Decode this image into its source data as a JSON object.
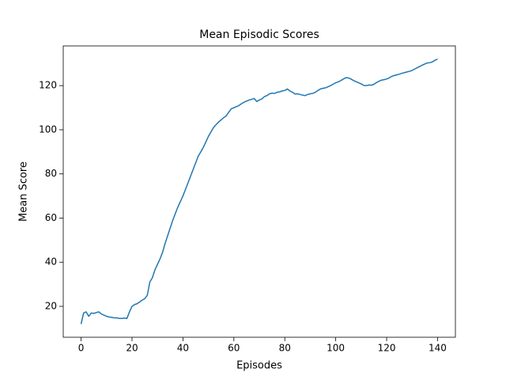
{
  "chart_data": {
    "type": "line",
    "title": "Mean Episodic Scores",
    "x_label": "Episodes",
    "y_label": "Mean Score",
    "x": [
      0,
      1,
      2,
      3,
      4,
      5,
      6,
      7,
      8,
      9,
      10,
      11,
      12,
      13,
      14,
      15,
      16,
      17,
      18,
      19,
      20,
      21,
      22,
      23,
      24,
      25,
      26,
      27,
      28,
      29,
      30,
      31,
      32,
      33,
      34,
      35,
      36,
      37,
      38,
      39,
      40,
      41,
      42,
      43,
      44,
      45,
      46,
      47,
      48,
      49,
      50,
      51,
      52,
      53,
      54,
      55,
      56,
      57,
      58,
      59,
      60,
      61,
      62,
      63,
      64,
      65,
      66,
      67,
      68,
      69,
      70,
      71,
      72,
      73,
      74,
      75,
      76,
      77,
      78,
      79,
      80,
      81,
      82,
      83,
      84,
      85,
      86,
      87,
      88,
      89,
      90,
      91,
      92,
      93,
      94,
      95,
      96,
      97,
      98,
      99,
      100,
      101,
      102,
      103,
      104,
      105,
      106,
      107,
      108,
      109,
      110,
      111,
      112,
      113,
      114,
      115,
      116,
      117,
      118,
      119,
      120,
      121,
      122,
      123,
      124,
      125,
      126,
      127,
      128,
      129,
      130,
      131,
      132,
      133,
      134,
      135,
      136,
      137,
      138,
      139,
      140
    ],
    "series": [
      {
        "name": "Mean Score",
        "color": "#1f77b4",
        "values": [
          12,
          17,
          17.5,
          15.5,
          17,
          16.8,
          17.2,
          17.5,
          16.5,
          16,
          15.5,
          15.2,
          15,
          14.8,
          14.8,
          14.5,
          14.5,
          14.7,
          14.5,
          17.5,
          20,
          20.8,
          21.2,
          22,
          22.8,
          23.5,
          25,
          31,
          33,
          36.5,
          39,
          41.5,
          44.5,
          48.5,
          52,
          55.5,
          59,
          62,
          65,
          67.5,
          70,
          73,
          76,
          79,
          82,
          85,
          88,
          90,
          92,
          94.5,
          97,
          99,
          101,
          102.3,
          103.5,
          104.5,
          105.5,
          106.3,
          108,
          109.5,
          110,
          110.5,
          111,
          111.8,
          112.5,
          113,
          113.5,
          113.8,
          114.2,
          112.8,
          113.5,
          114,
          115,
          115.5,
          116.3,
          116.6,
          116.5,
          117,
          117.2,
          117.6,
          117.8,
          118.5,
          117.6,
          117,
          116.2,
          116.3,
          116,
          115.7,
          115.5,
          116,
          116.3,
          116.5,
          117,
          117.8,
          118.5,
          118.8,
          119,
          119.5,
          120,
          120.7,
          121.3,
          121.7,
          122.3,
          123,
          123.6,
          123.5,
          123,
          122.3,
          121.8,
          121.3,
          120.8,
          120.1,
          120,
          120.3,
          120.2,
          120.6,
          121.4,
          122,
          122.5,
          122.7,
          123,
          123.5,
          124.2,
          124.6,
          124.9,
          125.2,
          125.6,
          125.9,
          126.2,
          126.5,
          126.9,
          127.5,
          128.1,
          128.7,
          129.3,
          129.8,
          130.3,
          130.4,
          130.8,
          131.5,
          132
        ]
      }
    ],
    "xlim": [
      -7,
      147
    ],
    "ylim": [
      6,
      138
    ],
    "xticks": [
      0,
      20,
      40,
      60,
      80,
      100,
      120,
      140
    ],
    "yticks": [
      20,
      40,
      60,
      80,
      100,
      120
    ]
  }
}
